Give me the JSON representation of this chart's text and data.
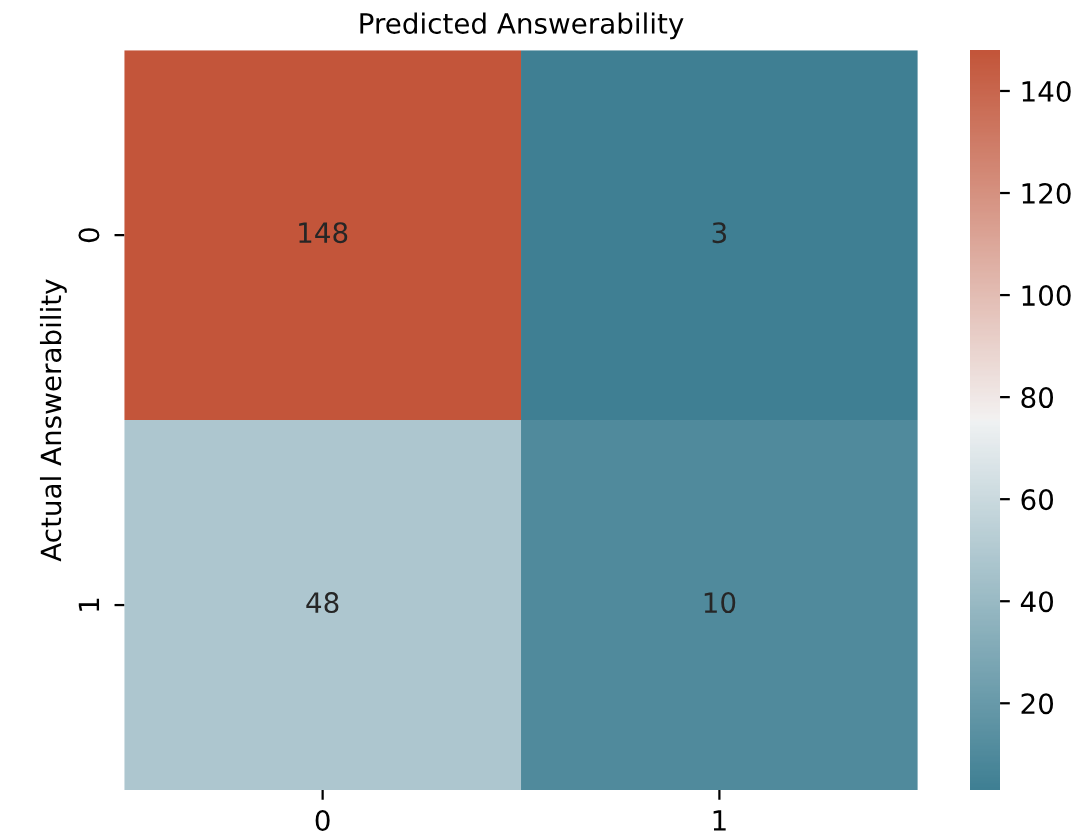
{
  "chart_data": {
    "type": "heatmap",
    "title": "Predicted Answerability",
    "ylabel": "Actual Answerability",
    "categories": [
      "0",
      "1"
    ],
    "y_categories": [
      "0",
      "1"
    ],
    "cells": [
      [
        148,
        3
      ],
      [
        48,
        10
      ]
    ],
    "clim": [
      3,
      148
    ],
    "cticks": [
      20,
      40,
      60,
      80,
      100,
      120,
      140
    ],
    "data_labels": true
  }
}
